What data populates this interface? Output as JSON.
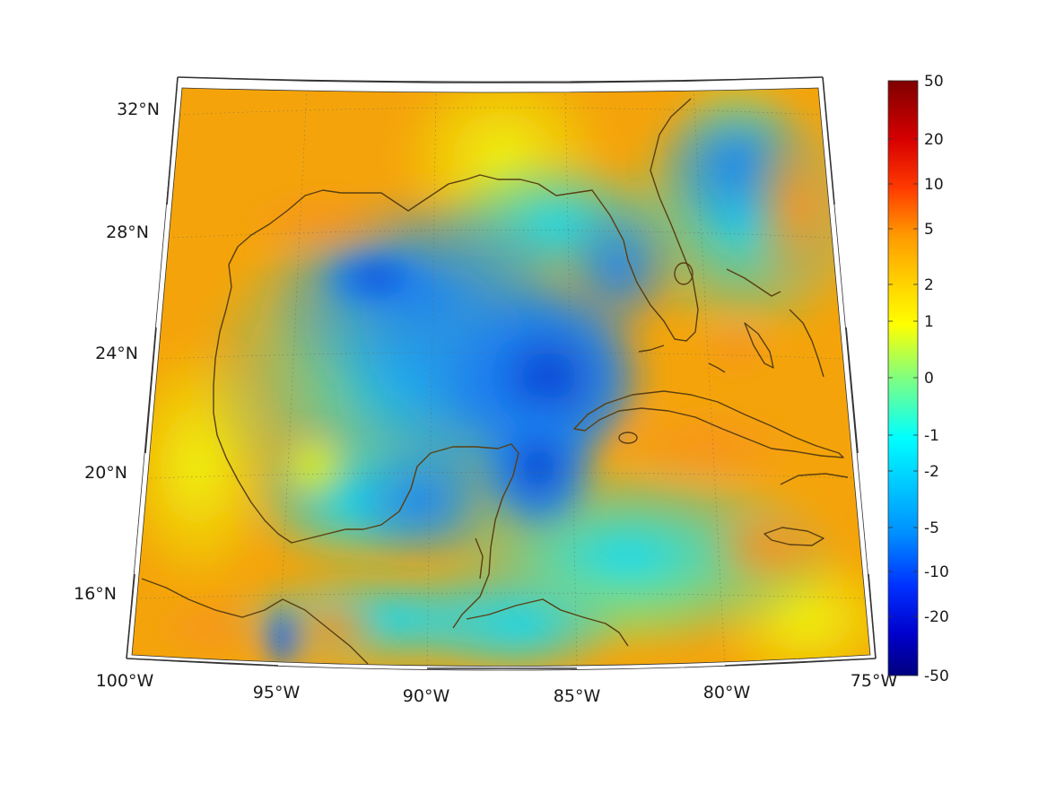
{
  "map": {
    "latitude_labels": [
      "32°N",
      "28°N",
      "24°N",
      "20°N",
      "16°N"
    ],
    "longitude_labels": [
      "100°W",
      "95°W",
      "90°W",
      "85°W",
      "80°W",
      "75°W"
    ],
    "projection": "conic",
    "extent": {
      "lon": [
        -100,
        -75
      ],
      "lat": [
        14,
        33
      ]
    }
  },
  "colorbar": {
    "colormap": "jet",
    "tick_labels": [
      "50",
      "20",
      "10",
      "5",
      "2",
      "1",
      "0",
      "-1",
      "-2",
      "-5",
      "-10",
      "-20",
      "-50"
    ],
    "colors": [
      "#7f0000",
      "#ff0000",
      "#ff8000",
      "#ffff00",
      "#00ffff",
      "#0000ff",
      "#00007f"
    ]
  },
  "colors": {
    "coastline": "#5a3f12",
    "land_high": "#f4a40a",
    "gulf_low": "#1878e8",
    "deep_low": "#0b3fd0"
  }
}
